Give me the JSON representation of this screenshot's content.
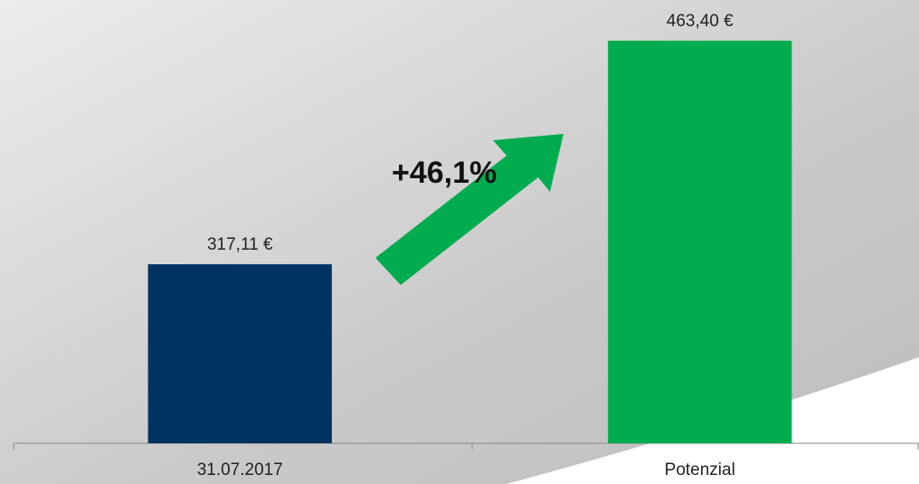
{
  "chart_data": {
    "type": "bar",
    "categories": [
      "31.07.2017",
      "Potenzial"
    ],
    "values": [
      317.11,
      463.4
    ],
    "value_labels": [
      "317,11 €",
      "463,40 €"
    ],
    "colors": [
      "#003262",
      "#00ac4e"
    ],
    "annotation": "+46,1%",
    "ylim": [
      200,
      490
    ]
  }
}
